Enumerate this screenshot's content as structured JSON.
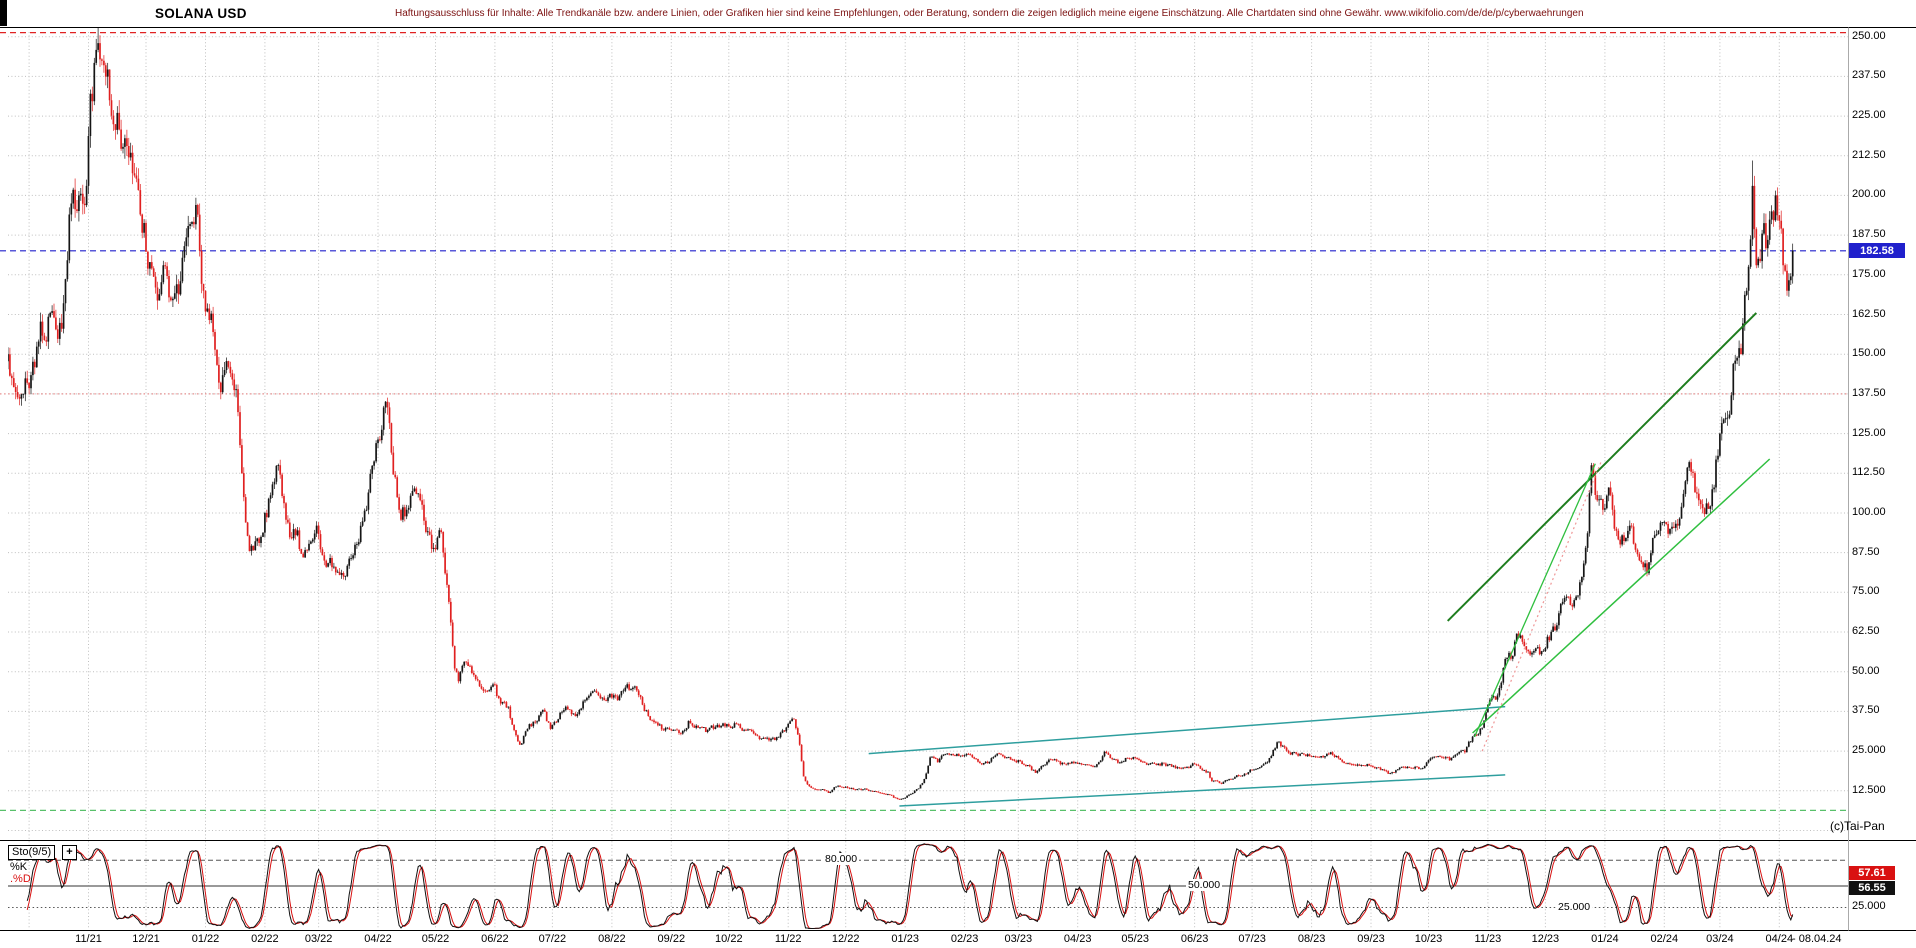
{
  "header": {
    "title": "SOLANA USD",
    "disclaimer": "Haftungsausschluss für Inhalte: Alle Trendkanäle bzw. andere Linien, oder Grafiken hier sind keine Empfehlungen, oder Beratung, sondern die zeigen lediglich meine eigene Einschätzung. Alle Chartdaten sind ohne Gewähr.  www.wikifolio.com/de/de/p/cyberwaehrungen"
  },
  "watermark": "(c)Tai-Pan",
  "price_axis": {
    "labels": [
      "250.00",
      "237.50",
      "225.00",
      "212.50",
      "200.00",
      "187.50",
      "175.00",
      "162.50",
      "150.00",
      "137.50",
      "125.00",
      "112.50",
      "100.00",
      "87.50",
      "75.00",
      "62.50",
      "50.00",
      "37.50",
      "25.000",
      "12.500"
    ],
    "values": [
      250,
      237.5,
      225,
      212.5,
      200,
      187.5,
      175,
      162.5,
      150,
      137.5,
      125,
      112.5,
      100,
      87.5,
      75,
      62.5,
      50,
      37.5,
      25,
      12.5
    ],
    "current_price_label": "182.58",
    "current_price": 182.58
  },
  "x_axis": {
    "month_labels": [
      "11/21",
      "12/21",
      "01/22",
      "02/22",
      "03/22",
      "04/22",
      "05/22",
      "06/22",
      "07/22",
      "08/22",
      "09/22",
      "10/22",
      "11/22",
      "12/22",
      "01/23",
      "02/23",
      "03/23",
      "04/23",
      "05/23",
      "06/23",
      "07/23",
      "08/23",
      "09/23",
      "10/23",
      "11/23",
      "12/23",
      "01/24",
      "02/24",
      "03/24",
      "04/24"
    ],
    "end_label": "- 08.04.24"
  },
  "indicator": {
    "name_label": "Sto(9/5)",
    "add_button_label": "+",
    "k_label": "%K",
    "d_label": ".%D",
    "levels": [
      {
        "value": 80,
        "label": "80.000"
      },
      {
        "value": 50,
        "label": "50.000"
      },
      {
        "value": 25,
        "label": "25.000"
      }
    ],
    "d_value_label": "57.61",
    "k_value_label": "56.55",
    "axis_25_label": "25.000"
  },
  "colors": {
    "candle_up": "#151515",
    "candle_down": "#e02020",
    "grid": "#bfbfbf",
    "frame": "#000000",
    "current_price_line": "#2020cc",
    "resistance": "#e02222",
    "minor_resistance": "#e88f8f",
    "support_green": "#58c06a",
    "channel": "#2e9e9e",
    "trend_dark_green": "#1e7d1e",
    "trend_green": "#2fbf3f",
    "trend_pink": "#ef9898",
    "k_line": "#111111",
    "d_line": "#d91111",
    "sto_level": "#555555"
  },
  "chart_data": {
    "type": "candlestick",
    "symbol": "SOLANA USD",
    "timeframe": "daily",
    "start_date": "2021-09-20",
    "end_date": "2024-04-08",
    "price_axis_range": [
      0,
      251.5
    ],
    "last_close": 182.58,
    "keyframes": [
      [
        "2021-09-20",
        150
      ],
      [
        "2021-09-26",
        136
      ],
      [
        "2021-09-30",
        141
      ],
      [
        "2021-10-06",
        154
      ],
      [
        "2021-10-12",
        163
      ],
      [
        "2021-10-18",
        158
      ],
      [
        "2021-10-22",
        194
      ],
      [
        "2021-10-27",
        200
      ],
      [
        "2021-10-31",
        203
      ],
      [
        "2021-11-02",
        232
      ],
      [
        "2021-11-06",
        248,
        255
      ],
      [
        "2021-11-09",
        241
      ],
      [
        "2021-11-12",
        230
      ],
      [
        "2021-11-16",
        226
      ],
      [
        "2021-11-20",
        218
      ],
      [
        "2021-11-24",
        207
      ],
      [
        "2021-11-28",
        194
      ],
      [
        "2021-12-03",
        179
      ],
      [
        "2021-12-06",
        171
      ],
      [
        "2021-12-10",
        178
      ],
      [
        "2021-12-14",
        167
      ],
      [
        "2021-12-19",
        173
      ],
      [
        "2021-12-24",
        191
      ],
      [
        "2021-12-27",
        197
      ],
      [
        "2021-12-31",
        170
      ],
      [
        "2022-01-05",
        157
      ],
      [
        "2022-01-09",
        138
      ],
      [
        "2022-01-13",
        146
      ],
      [
        "2022-01-17",
        139
      ],
      [
        "2022-01-22",
        97
      ],
      [
        "2022-01-24",
        88
      ],
      [
        "2022-01-28",
        92
      ],
      [
        "2022-02-01",
        100
      ],
      [
        "2022-02-05",
        109
      ],
      [
        "2022-02-08",
        115
      ],
      [
        "2022-02-13",
        97
      ],
      [
        "2022-02-17",
        93
      ],
      [
        "2022-02-21",
        86
      ],
      [
        "2022-02-25",
        91
      ],
      [
        "2022-02-28",
        96
      ],
      [
        "2022-03-04",
        85
      ],
      [
        "2022-03-09",
        83
      ],
      [
        "2022-03-14",
        80
      ],
      [
        "2022-03-20",
        90
      ],
      [
        "2022-03-26",
        101
      ],
      [
        "2022-03-31",
        122
      ],
      [
        "2022-04-05",
        135
      ],
      [
        "2022-04-08",
        119
      ],
      [
        "2022-04-12",
        101
      ],
      [
        "2022-04-16",
        101
      ],
      [
        "2022-04-21",
        106
      ],
      [
        "2022-04-26",
        94
      ],
      [
        "2022-04-30",
        89
      ],
      [
        "2022-05-04",
        94
      ],
      [
        "2022-05-08",
        72
      ],
      [
        "2022-05-11",
        51
      ],
      [
        "2022-05-13",
        47
      ],
      [
        "2022-05-17",
        53
      ],
      [
        "2022-05-21",
        49
      ],
      [
        "2022-05-26",
        44
      ],
      [
        "2022-05-31",
        46
      ],
      [
        "2022-06-04",
        40
      ],
      [
        "2022-06-08",
        39
      ],
      [
        "2022-06-12",
        30
      ],
      [
        "2022-06-14",
        27
      ],
      [
        "2022-06-18",
        32
      ],
      [
        "2022-06-22",
        34
      ],
      [
        "2022-06-26",
        38
      ],
      [
        "2022-06-30",
        32
      ],
      [
        "2022-07-04",
        35
      ],
      [
        "2022-07-08",
        39
      ],
      [
        "2022-07-13",
        36
      ],
      [
        "2022-07-18",
        41
      ],
      [
        "2022-07-23",
        44
      ],
      [
        "2022-07-28",
        41
      ],
      [
        "2022-07-31",
        43
      ],
      [
        "2022-08-04",
        41
      ],
      [
        "2022-08-08",
        45
      ],
      [
        "2022-08-12",
        45
      ],
      [
        "2022-08-16",
        42
      ],
      [
        "2022-08-20",
        36
      ],
      [
        "2022-08-24",
        34
      ],
      [
        "2022-08-28",
        31.5
      ],
      [
        "2022-09-01",
        31.5
      ],
      [
        "2022-09-06",
        30.5
      ],
      [
        "2022-09-10",
        34.5
      ],
      [
        "2022-09-14",
        33
      ],
      [
        "2022-09-19",
        31
      ],
      [
        "2022-09-24",
        32.5
      ],
      [
        "2022-09-30",
        33.5
      ],
      [
        "2022-10-05",
        33.5
      ],
      [
        "2022-10-10",
        31.5
      ],
      [
        "2022-10-15",
        30
      ],
      [
        "2022-10-20",
        29
      ],
      [
        "2022-10-25",
        28.5
      ],
      [
        "2022-10-29",
        31.5
      ],
      [
        "2022-11-04",
        35
      ],
      [
        "2022-11-07",
        27
      ],
      [
        "2022-11-09",
        17
      ],
      [
        "2022-11-11",
        14.5
      ],
      [
        "2022-11-14",
        13.2
      ],
      [
        "2022-11-18",
        12.8
      ],
      [
        "2022-11-22",
        11.8
      ],
      [
        "2022-11-26",
        13.8
      ],
      [
        "2022-11-30",
        13.5
      ],
      [
        "2022-12-04",
        13.4
      ],
      [
        "2022-12-08",
        13.1
      ],
      [
        "2022-12-12",
        12.8
      ],
      [
        "2022-12-16",
        12.3
      ],
      [
        "2022-12-20",
        11.6
      ],
      [
        "2022-12-24",
        11.2
      ],
      [
        "2022-12-28",
        9.9
      ],
      [
        "2022-12-31",
        10
      ],
      [
        "2023-01-04",
        11.5
      ],
      [
        "2023-01-08",
        13.2
      ],
      [
        "2023-01-11",
        16.2
      ],
      [
        "2023-01-14",
        23
      ],
      [
        "2023-01-18",
        21.5
      ],
      [
        "2023-01-22",
        24
      ],
      [
        "2023-01-26",
        23.8
      ],
      [
        "2023-01-30",
        23.5
      ],
      [
        "2023-02-03",
        23.9
      ],
      [
        "2023-02-07",
        22.5
      ],
      [
        "2023-02-10",
        20.8
      ],
      [
        "2023-02-14",
        21.7
      ],
      [
        "2023-02-18",
        24.2
      ],
      [
        "2023-02-22",
        22.8
      ],
      [
        "2023-02-26",
        22.3
      ],
      [
        "2023-03-02",
        21.8
      ],
      [
        "2023-03-06",
        20.6
      ],
      [
        "2023-03-10",
        18.2
      ],
      [
        "2023-03-14",
        20.5
      ],
      [
        "2023-03-18",
        22.3
      ],
      [
        "2023-03-22",
        21.8
      ],
      [
        "2023-03-26",
        20.8
      ],
      [
        "2023-03-30",
        21.2
      ],
      [
        "2023-04-03",
        20.8
      ],
      [
        "2023-04-08",
        20.3
      ],
      [
        "2023-04-12",
        21.5
      ],
      [
        "2023-04-15",
        24.8
      ],
      [
        "2023-04-19",
        22.4
      ],
      [
        "2023-04-23",
        21.3
      ],
      [
        "2023-04-27",
        22.8
      ],
      [
        "2023-04-30",
        23.1
      ],
      [
        "2023-05-04",
        21.6
      ],
      [
        "2023-05-08",
        20.9
      ],
      [
        "2023-05-12",
        20.6
      ],
      [
        "2023-05-16",
        21.1
      ],
      [
        "2023-05-20",
        20.1
      ],
      [
        "2023-05-24",
        19.6
      ],
      [
        "2023-05-28",
        19.9
      ],
      [
        "2023-06-01",
        20.8
      ],
      [
        "2023-06-05",
        18.9
      ],
      [
        "2023-06-08",
        18.5
      ],
      [
        "2023-06-10",
        15.5
      ],
      [
        "2023-06-14",
        14.9
      ],
      [
        "2023-06-18",
        15.8
      ],
      [
        "2023-06-22",
        16.8
      ],
      [
        "2023-06-26",
        17.2
      ],
      [
        "2023-06-30",
        19.1
      ],
      [
        "2023-07-04",
        19.6
      ],
      [
        "2023-07-08",
        21.3
      ],
      [
        "2023-07-13",
        25.9
      ],
      [
        "2023-07-14",
        27.8
      ],
      [
        "2023-07-18",
        26.1
      ],
      [
        "2023-07-22",
        24.6
      ],
      [
        "2023-07-26",
        24.2
      ],
      [
        "2023-07-30",
        24
      ],
      [
        "2023-08-03",
        23.2
      ],
      [
        "2023-08-07",
        23
      ],
      [
        "2023-08-11",
        24.6
      ],
      [
        "2023-08-15",
        22.8
      ],
      [
        "2023-08-18",
        21.2
      ],
      [
        "2023-08-22",
        20.7
      ],
      [
        "2023-08-26",
        20.4
      ],
      [
        "2023-08-30",
        20.9
      ],
      [
        "2023-09-03",
        19.6
      ],
      [
        "2023-09-07",
        19.2
      ],
      [
        "2023-09-11",
        18
      ],
      [
        "2023-09-15",
        19.3
      ],
      [
        "2023-09-19",
        19.6
      ],
      [
        "2023-09-23",
        19.5
      ],
      [
        "2023-09-27",
        19.4
      ],
      [
        "2023-09-30",
        21.4
      ],
      [
        "2023-10-04",
        23.2
      ],
      [
        "2023-10-08",
        23
      ],
      [
        "2023-10-12",
        22.1
      ],
      [
        "2023-10-16",
        24.2
      ],
      [
        "2023-10-20",
        24.6
      ],
      [
        "2023-10-24",
        29.5
      ],
      [
        "2023-10-28",
        32.1
      ],
      [
        "2023-11-02",
        41
      ],
      [
        "2023-11-06",
        42.5
      ],
      [
        "2023-11-10",
        54
      ],
      [
        "2023-11-14",
        55
      ],
      [
        "2023-11-16",
        62
      ],
      [
        "2023-11-20",
        58
      ],
      [
        "2023-11-24",
        56
      ],
      [
        "2023-11-28",
        55.5
      ],
      [
        "2023-12-02",
        61
      ],
      [
        "2023-12-06",
        63
      ],
      [
        "2023-12-10",
        72
      ],
      [
        "2023-12-14",
        71
      ],
      [
        "2023-12-18",
        74
      ],
      [
        "2023-12-22",
        89
      ],
      [
        "2023-12-25",
        115
      ],
      [
        "2023-12-28",
        104
      ],
      [
        "2023-12-31",
        101
      ],
      [
        "2024-01-03",
        108
      ],
      [
        "2024-01-06",
        95
      ],
      [
        "2024-01-10",
        93
      ],
      [
        "2024-01-14",
        96
      ],
      [
        "2024-01-18",
        87
      ],
      [
        "2024-01-23",
        81
      ],
      [
        "2024-01-27",
        93
      ],
      [
        "2024-01-31",
        97
      ],
      [
        "2024-02-04",
        95
      ],
      [
        "2024-02-08",
        96
      ],
      [
        "2024-02-12",
        110
      ],
      [
        "2024-02-15",
        113
      ],
      [
        "2024-02-19",
        104
      ],
      [
        "2024-02-23",
        103
      ],
      [
        "2024-02-27",
        108
      ],
      [
        "2024-03-01",
        125
      ],
      [
        "2024-03-05",
        130
      ],
      [
        "2024-03-08",
        147
      ],
      [
        "2024-03-12",
        150
      ],
      [
        "2024-03-15",
        170
      ],
      [
        "2024-03-18",
        203,
        211
      ],
      [
        "2024-03-20",
        178
      ],
      [
        "2024-03-23",
        188
      ],
      [
        "2024-03-26",
        186
      ],
      [
        "2024-03-30",
        200
      ],
      [
        "2024-04-01",
        192
      ],
      [
        "2024-04-03",
        178
      ],
      [
        "2024-04-05",
        170
      ],
      [
        "2024-04-08",
        182.58
      ]
    ],
    "horizontal_lines": [
      {
        "name": "resistance-250",
        "price": 251.3,
        "style": "dashed",
        "color_key": "resistance"
      },
      {
        "name": "current-price-line",
        "price": 182.58,
        "style": "dashed",
        "color_key": "current_price_line"
      },
      {
        "name": "minor-resistance-137-50",
        "price": 137.5,
        "style": "dotted",
        "color_key": "minor_resistance"
      },
      {
        "name": "support-green",
        "price": 6.3,
        "style": "dashed",
        "color_key": "support_green"
      }
    ],
    "trend_lines": [
      {
        "name": "sideways-channel-upper",
        "from": [
          "2022-12-13",
          24.2
        ],
        "to": [
          "2023-11-10",
          39
        ],
        "color_key": "channel",
        "width": 1.5
      },
      {
        "name": "sideways-channel-lower",
        "from": [
          "2022-12-29",
          7.7
        ],
        "to": [
          "2023-11-10",
          17.5
        ],
        "color_key": "channel",
        "width": 1.5
      },
      {
        "name": "uptrend-resistance",
        "from": [
          "2023-10-11",
          66
        ],
        "to": [
          "2024-03-20",
          163
        ],
        "color_key": "trend_dark_green",
        "width": 2
      },
      {
        "name": "uptrend-support",
        "from": [
          "2023-10-24",
          30.7
        ],
        "to": [
          "2024-03-27",
          117
        ],
        "color_key": "trend_green",
        "width": 1.5
      },
      {
        "name": "uptrend-steep-support",
        "from": [
          "2023-10-25",
          29.5
        ],
        "to": [
          "2023-12-27",
          115.5
        ],
        "color_key": "trend_green",
        "width": 1.3
      },
      {
        "name": "uptrend-dotted-guide",
        "from": [
          "2023-10-29",
          25
        ],
        "to": [
          "2023-12-30",
          116
        ],
        "color_key": "trend_pink",
        "width": 1.2,
        "style": "dotted"
      }
    ],
    "indicator_panel": {
      "type": "stochastic",
      "params": "9/5",
      "range": [
        0,
        100
      ],
      "levels": [
        80,
        50,
        25
      ],
      "k_value": 56.55,
      "d_value": 57.61
    }
  }
}
